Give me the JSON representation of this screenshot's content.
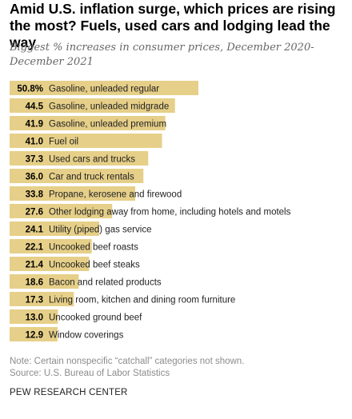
{
  "chart_data": {
    "type": "bar",
    "orientation": "horizontal",
    "title": "Amid U.S. inflation surge, which prices are rising the most? Fuels, used cars and lodging lead the way",
    "subtitle": "Biggest % increases in consumer prices, December 2020-December 2021",
    "xlabel": "",
    "ylabel": "",
    "xlim": [
      0,
      50.8
    ],
    "grid": false,
    "legend": "none",
    "bar_color": "#e6cf88",
    "categories": [
      "Gasoline, unleaded regular",
      "Gasoline, unleaded midgrade",
      "Gasoline, unleaded premium",
      "Fuel oil",
      "Used cars and trucks",
      "Car and truck rentals",
      "Propane, kerosene and firewood",
      "Other lodging away from home, including hotels and motels",
      "Utility (piped) gas service",
      "Uncooked beef roasts",
      "Uncooked beef steaks",
      "Bacon and related products",
      "Living room, kitchen and dining room furniture",
      "Uncooked ground beef",
      "Window coverings"
    ],
    "values": [
      50.8,
      44.5,
      41.9,
      41.0,
      37.3,
      36.0,
      33.8,
      27.6,
      24.1,
      22.1,
      21.4,
      18.6,
      17.3,
      13.0,
      12.9
    ],
    "value_labels": [
      "50.8%",
      "44.5",
      "41.9",
      "41.0",
      "37.3",
      "36.0",
      "33.8",
      "27.6",
      "24.1",
      "22.1",
      "21.4",
      "18.6",
      "17.3",
      "13.0",
      "12.9"
    ]
  },
  "footer": {
    "note": "Note: Certain nonspecific “catchall” categories not shown.",
    "source": "Source: U.S. Bureau of Labor Statistics",
    "org": "PEW RESEARCH CENTER"
  }
}
